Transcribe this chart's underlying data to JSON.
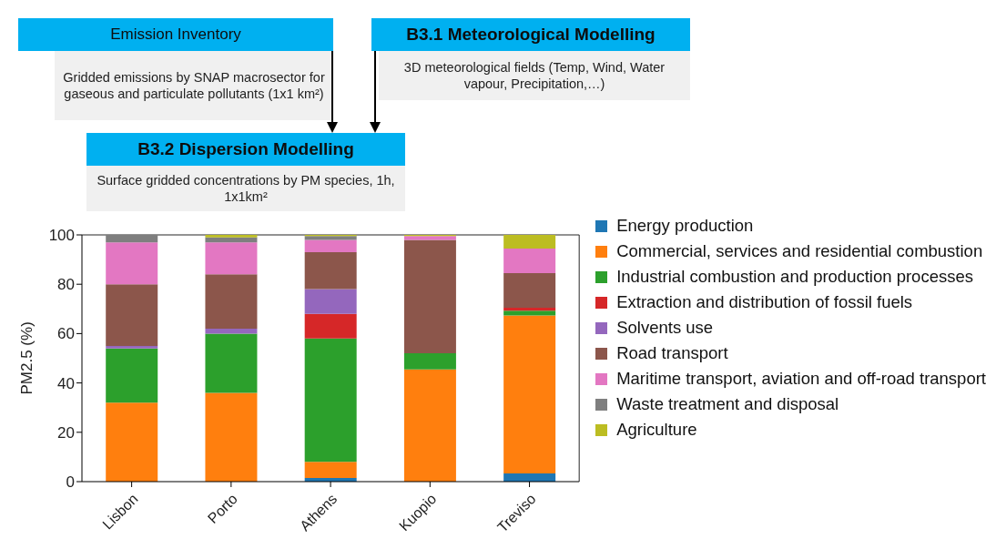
{
  "chart_data": {
    "type": "bar",
    "stacked": true,
    "annotations": [
      "Emission Inventory",
      "Gridded emissions by SNAP macrosector for gaseous and particulate pollutants (1x1 km²)",
      "B3.1 Meteorological Modelling",
      "3D meteorological fields (Temp, Wind, Water vapour, Precipitation,…)",
      "B3.2 Dispersion Modelling",
      "Surface gridded concentrations by PM species, 1h, 1x1km²"
    ],
    "ylabel": "PM2.5 (%)",
    "categories": [
      "Lisbon",
      "Porto",
      "Athens",
      "Kuopio",
      "Treviso"
    ],
    "series": [
      {
        "name": "Energy production",
        "color": "#1f77b4",
        "values": [
          0,
          0,
          1.5,
          0,
          3.3
        ]
      },
      {
        "name": "Commercial, services and residential combustion",
        "color": "#ff7f0e",
        "values": [
          32,
          36,
          6.5,
          45.5,
          64
        ]
      },
      {
        "name": "Industrial combustion and production processes",
        "color": "#2ca02c",
        "values": [
          22,
          24,
          50,
          6.5,
          2
        ]
      },
      {
        "name": "Extraction and distribution of fossil fuels",
        "color": "#d62728",
        "values": [
          0,
          0,
          10,
          0,
          1.2
        ]
      },
      {
        "name": "Solvents use",
        "color": "#9467bd",
        "values": [
          1,
          2,
          10,
          0,
          0
        ]
      },
      {
        "name": "Road transport",
        "color": "#8c564b",
        "values": [
          25,
          22,
          15,
          46,
          14
        ]
      },
      {
        "name": "Maritime transport, aviation and off-road transport",
        "color": "#e377c2",
        "values": [
          17,
          13,
          5,
          1.5,
          10
        ]
      },
      {
        "name": "Waste treatment and disposal",
        "color": "#7f7f7f",
        "values": [
          3,
          2,
          1.5,
          0,
          0
        ]
      },
      {
        "name": "Agriculture",
        "color": "#bcbd22",
        "values": [
          0,
          1,
          0.5,
          0.5,
          5.5
        ]
      }
    ],
    "ylim": [
      0,
      100
    ],
    "yticks": [
      0,
      20,
      40,
      60,
      80,
      100
    ],
    "grid": false,
    "legend": "right"
  }
}
